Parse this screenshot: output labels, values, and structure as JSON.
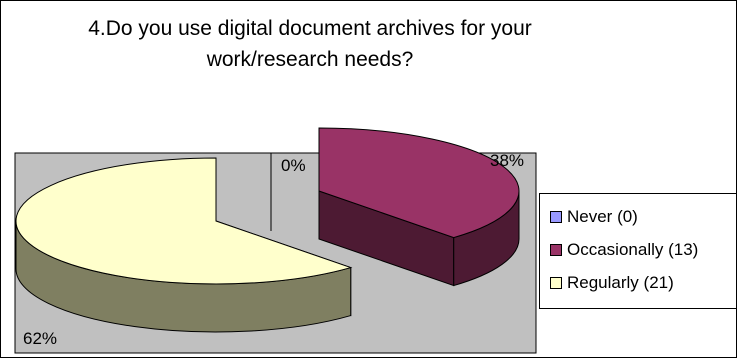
{
  "chart_data": {
    "type": "pie",
    "title_lines": [
      "4.Do you use digital document archives for your",
      "work/research needs?"
    ],
    "categories": [
      "Never",
      "Occasionally",
      "Regularly"
    ],
    "values": [
      0,
      13,
      21
    ],
    "percent_labels": [
      "0%",
      "38%",
      "62%"
    ],
    "legend_labels": [
      "Never (0)",
      "Occasionally (13)",
      "Regularly (21)"
    ],
    "colors": {
      "Never": "#9999ff",
      "Occasionally": "#993366",
      "Regularly": "#ffffcc",
      "Regularly_side": "#7f7f61",
      "Occasionally_side": "#4d1a33",
      "plot_background": "#c0c0c0"
    },
    "style": "3d-exploded",
    "legend_position": "right"
  }
}
